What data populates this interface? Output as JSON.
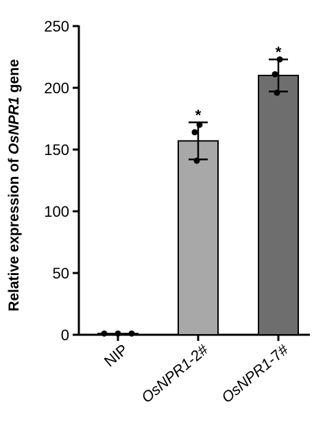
{
  "chart_data": {
    "type": "bar",
    "ylabel_parts": [
      {
        "text": "Relative expression of ",
        "italic": false
      },
      {
        "text": "OsNPR1",
        "italic": true
      },
      {
        "text": " gene",
        "italic": false
      }
    ],
    "ylim": [
      0,
      250
    ],
    "yticks": [
      "0",
      "50",
      "100",
      "150",
      "200",
      "250"
    ],
    "categories": [
      {
        "label": "NIP",
        "italic_part": "",
        "plain_part": "NIP"
      },
      {
        "label": "OsNPR1-2#",
        "italic_part": "OsNPR1",
        "plain_part": "-2#"
      },
      {
        "label": "OsNPR1-7#",
        "italic_part": "OsNPR1",
        "plain_part": "-7#"
      }
    ],
    "values": [
      1,
      157,
      210
    ],
    "error": [
      0.5,
      15,
      13
    ],
    "points": [
      [
        1,
        1,
        1
      ],
      [
        141,
        164,
        170
      ],
      [
        196,
        211,
        223
      ]
    ],
    "significance": [
      "",
      "*",
      "*"
    ],
    "colors": [
      "#ffffff",
      "#a8a8a8",
      "#6e6e6e"
    ],
    "grid": false,
    "legend": "none"
  }
}
